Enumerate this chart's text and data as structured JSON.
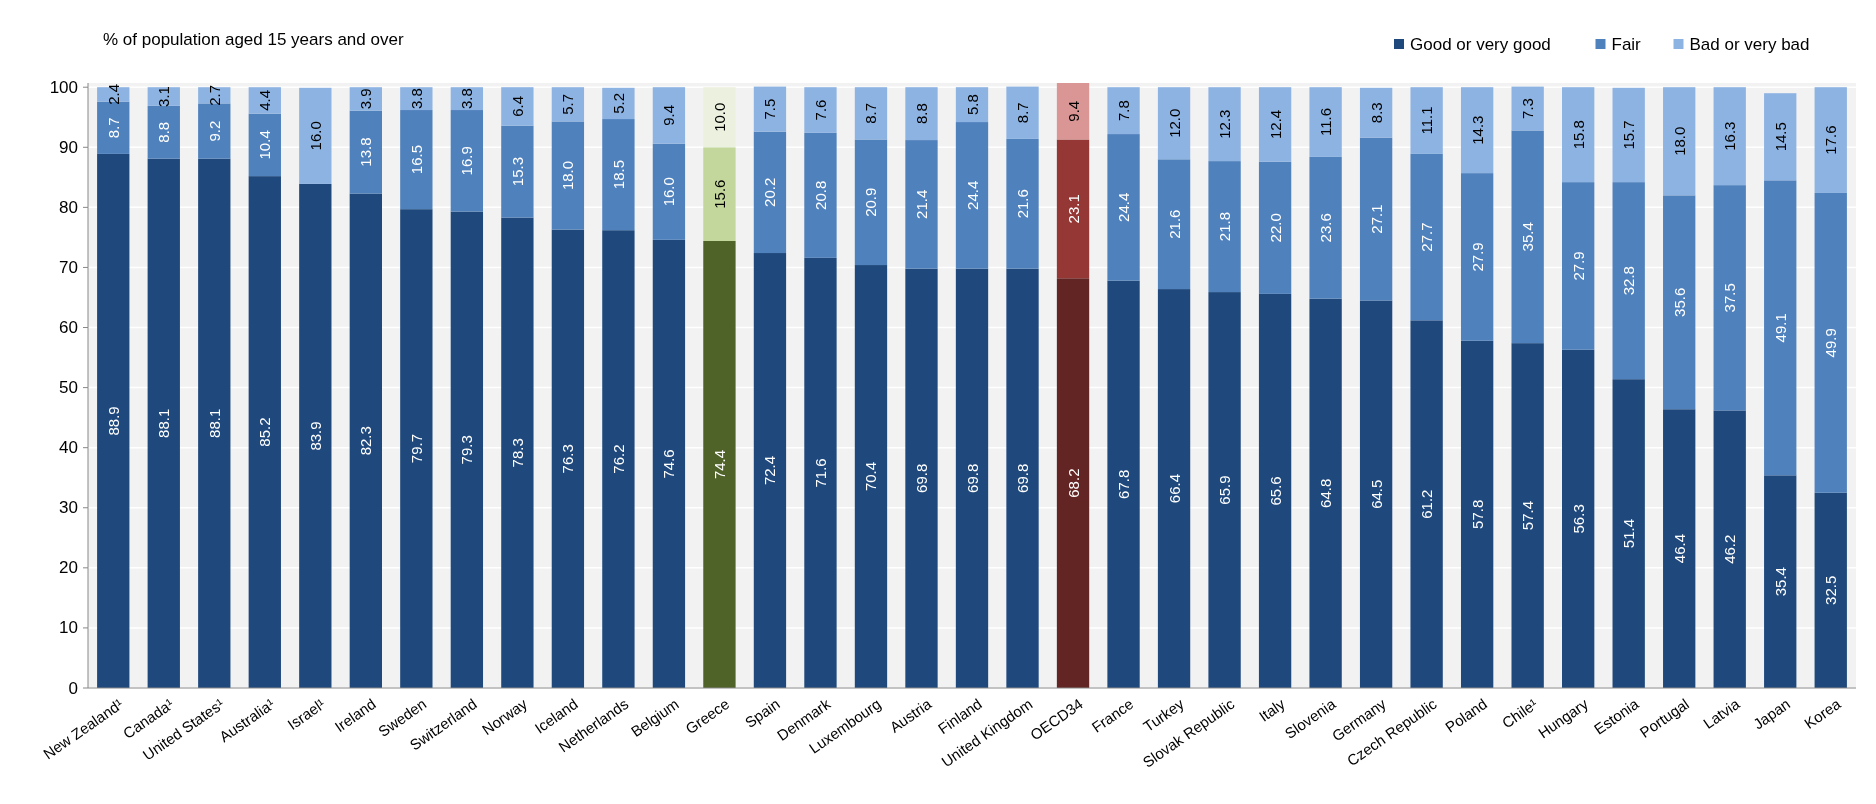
{
  "chart_data": {
    "type": "bar",
    "stacked": true,
    "ylabel": "% of population aged 15 years and over",
    "categories": [
      "New Zealand¹",
      "Canada¹",
      "United States¹",
      "Australia¹",
      "Israel¹",
      "Ireland",
      "Sweden",
      "Switzerland",
      "Norway",
      "Iceland",
      "Netherlands",
      "Belgium",
      "Greece",
      "Spain",
      "Denmark",
      "Luxembourg",
      "Austria",
      "Finland",
      "United Kingdom",
      "OECD34",
      "France",
      "Turkey",
      "Slovak Republic",
      "Italy",
      "Slovenia",
      "Germany",
      "Czech Republic",
      "Poland",
      "Chile¹",
      "Hungary",
      "Estonia",
      "Portugal",
      "Latvia",
      "Japan",
      "Korea"
    ],
    "series": [
      {
        "name": "Good or very good",
        "color": "#1f497d",
        "colors": [
          "#1f497d",
          "#1f497d",
          "#1f497d",
          "#1f497d",
          "#1f497d",
          "#1f497d",
          "#1f497d",
          "#1f497d",
          "#1f497d",
          "#1f497d",
          "#1f497d",
          "#1f497d",
          "#4f6228",
          "#1f497d",
          "#1f497d",
          "#1f497d",
          "#1f497d",
          "#1f497d",
          "#1f497d",
          "#632523",
          "#1f497d",
          "#1f497d",
          "#1f497d",
          "#1f497d",
          "#1f497d",
          "#1f497d",
          "#1f497d",
          "#1f497d",
          "#1f497d",
          "#1f497d",
          "#1f497d",
          "#1f497d",
          "#1f497d",
          "#1f497d",
          "#1f497d"
        ],
        "value_labels": [
          "88.9",
          "88.1",
          "88.1",
          "85.2",
          "83.9",
          "82.3",
          "79.7",
          "79.3",
          "78.3",
          "76.3",
          "76.2",
          "74.6",
          "74.4",
          "72.4",
          "71.6",
          "70.4",
          "69.8",
          "69.8",
          "69.8",
          "68.2",
          "67.8",
          "66.4",
          "65.9",
          "65.6",
          "64.8",
          "64.5",
          "61.2",
          "57.8",
          "57.4",
          "56.3",
          "51.4",
          "46.4",
          "46.2",
          "35.4",
          "32.5"
        ],
        "values": [
          88.9,
          88.1,
          88.1,
          85.2,
          83.9,
          82.3,
          79.7,
          79.3,
          78.3,
          76.3,
          76.2,
          74.6,
          74.4,
          72.4,
          71.6,
          70.4,
          69.8,
          69.8,
          69.8,
          68.2,
          67.8,
          66.4,
          65.9,
          65.6,
          64.8,
          64.5,
          61.2,
          57.8,
          57.4,
          56.3,
          51.4,
          46.4,
          46.2,
          35.4,
          32.5
        ]
      },
      {
        "name": "Fair",
        "color": "#4f81bd",
        "colors": [
          "#4f81bd",
          "#4f81bd",
          "#4f81bd",
          "#4f81bd",
          null,
          "#4f81bd",
          "#4f81bd",
          "#4f81bd",
          "#4f81bd",
          "#4f81bd",
          "#4f81bd",
          "#4f81bd",
          "#c3d69b",
          "#4f81bd",
          "#4f81bd",
          "#4f81bd",
          "#4f81bd",
          "#4f81bd",
          "#4f81bd",
          "#953735",
          "#4f81bd",
          "#4f81bd",
          "#4f81bd",
          "#4f81bd",
          "#4f81bd",
          "#4f81bd",
          "#4f81bd",
          "#4f81bd",
          "#4f81bd",
          "#4f81bd",
          "#4f81bd",
          "#4f81bd",
          "#4f81bd",
          "#4f81bd",
          "#4f81bd"
        ],
        "value_labels": [
          "8.7",
          "8.8",
          "9.2",
          "10.4",
          null,
          "13.8",
          "16.5",
          "16.9",
          "15.3",
          "18.0",
          "18.5",
          "16.0",
          "15.6",
          "20.2",
          "20.8",
          "20.9",
          "21.4",
          "24.4",
          "21.6",
          "23.1",
          "24.4",
          "21.6",
          "21.8",
          "22.0",
          "23.6",
          "27.1",
          "27.7",
          "27.9",
          "35.4",
          "27.9",
          "32.8",
          "35.6",
          "37.5",
          "49.1",
          "49.9"
        ],
        "values": [
          8.7,
          8.8,
          9.2,
          10.4,
          null,
          13.8,
          16.5,
          16.9,
          15.3,
          18.0,
          18.5,
          16.0,
          15.6,
          20.2,
          20.8,
          20.9,
          21.4,
          24.4,
          21.6,
          23.1,
          24.4,
          21.6,
          21.8,
          22.0,
          23.6,
          27.1,
          27.7,
          27.9,
          35.4,
          27.9,
          32.8,
          35.6,
          37.5,
          49.1,
          49.9
        ]
      },
      {
        "name": "Bad or very bad",
        "color": "#8db3e2",
        "colors": [
          "#8db3e2",
          "#8db3e2",
          "#8db3e2",
          "#8db3e2",
          "#8db3e2",
          "#8db3e2",
          "#8db3e2",
          "#8db3e2",
          "#8db3e2",
          "#8db3e2",
          "#8db3e2",
          "#8db3e2",
          "#ebf1de",
          "#8db3e2",
          "#8db3e2",
          "#8db3e2",
          "#8db3e2",
          "#8db3e2",
          "#8db3e2",
          "#d99694",
          "#8db3e2",
          "#8db3e2",
          "#8db3e2",
          "#8db3e2",
          "#8db3e2",
          "#8db3e2",
          "#8db3e2",
          "#8db3e2",
          "#8db3e2",
          "#8db3e2",
          "#8db3e2",
          "#8db3e2",
          "#8db3e2",
          "#8db3e2",
          "#8db3e2"
        ],
        "value_labels": [
          "2.4",
          "3.1",
          "2.7",
          "4.4",
          "16.0",
          "3.9",
          "3.8",
          "3.8",
          "6.4",
          "5.7",
          "5.2",
          "9.4",
          "10.0",
          "7.5",
          "7.6",
          "8.7",
          "8.8",
          "5.8",
          "8.7",
          "9.4",
          "7.8",
          "12.0",
          "12.3",
          "12.4",
          "11.6",
          "8.3",
          "11.1",
          "14.3",
          "7.3",
          "15.8",
          "15.7",
          "18.0",
          "16.3",
          "14.5",
          "17.6"
        ],
        "values": [
          2.4,
          3.1,
          2.7,
          4.4,
          16.0,
          3.9,
          3.8,
          3.8,
          6.4,
          5.7,
          5.2,
          9.4,
          10.0,
          7.5,
          7.6,
          8.7,
          8.8,
          5.8,
          8.7,
          9.4,
          7.8,
          12.0,
          12.3,
          12.4,
          11.6,
          8.3,
          11.1,
          14.3,
          7.3,
          15.8,
          15.7,
          18.0,
          16.3,
          14.5,
          17.6
        ]
      }
    ],
    "ylim": [
      0,
      100.7
    ],
    "yticks": [
      0,
      10,
      20,
      30,
      40,
      50,
      60,
      70,
      80,
      90,
      100
    ],
    "grid": "y",
    "legend": "top right"
  }
}
